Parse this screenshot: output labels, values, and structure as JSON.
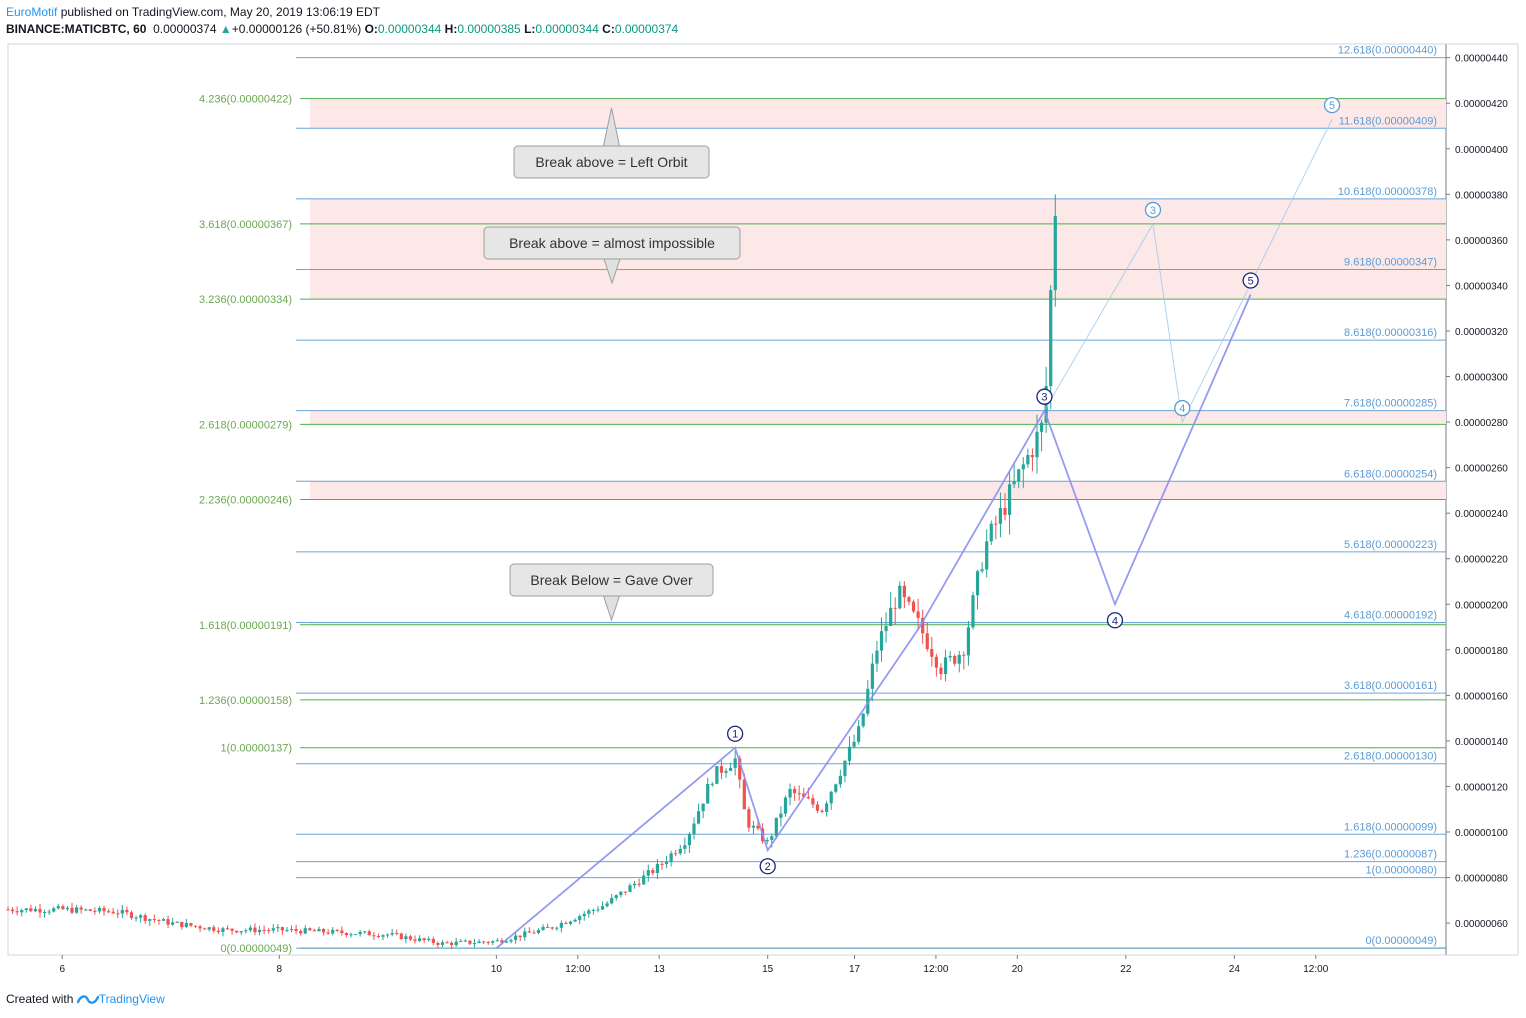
{
  "header": {
    "author": "EuroMotif",
    "published_text": "published on TradingView.com, May 20, 2019 13:06:19 EDT",
    "symbol": "BINANCE:MATICBTC, 60",
    "last": "0.00000374",
    "change_arrow": "▲",
    "change": "+0.00000126 (+50.81%)",
    "o_label": "O:",
    "o_value": "0.00000344",
    "h_label": "H:",
    "h_value": "0.00000385",
    "l_label": "L:",
    "l_value": "0.00000344",
    "c_label": "C:",
    "c_value": "0.00000374"
  },
  "footer": {
    "created_with": "Created with",
    "brand": "TradingView",
    "logo_icon": "tradingview-logo-icon"
  },
  "annotations": {
    "callout_left_orbit": "Break above = Left Orbit",
    "callout_impossible": "Break above = almost impossible",
    "callout_game_over": "Break Below = Gave Over"
  },
  "colors": {
    "up_candle": "#26a69a",
    "down_candle": "#ef5350",
    "fib_green": "#4caf50",
    "fib_blue": "#2196f3",
    "wave_purple": "#8c8ff0",
    "wave_label": "#1a237e",
    "zone_pink": "#fde8e8"
  },
  "chart_data": {
    "type": "candlestick",
    "y_axis": {
      "min": 4.6e-07,
      "max": 4.46e-06,
      "ticks": [
        "0.00000440",
        "0.00000420",
        "0.00000400",
        "0.00000380",
        "0.00000360",
        "0.00000340",
        "0.00000320",
        "0.00000300",
        "0.00000280",
        "0.00000260",
        "0.00000240",
        "0.00000220",
        "0.00000200",
        "0.00000180",
        "0.00000160",
        "0.00000140",
        "0.00000120",
        "0.00000100",
        "0.00000080",
        "0.00000060"
      ],
      "tick_values": [
        4.4e-06,
        4.2e-06,
        4e-06,
        3.8e-06,
        3.6e-06,
        3.4e-06,
        3.2e-06,
        3e-06,
        2.8e-06,
        2.6e-06,
        2.4e-06,
        2.2e-06,
        2e-06,
        1.8e-06,
        1.6e-06,
        1.4e-06,
        1.2e-06,
        1e-06,
        8e-07,
        6e-07
      ]
    },
    "x_axis": {
      "ticks": [
        {
          "label": "6",
          "t": 0.5
        },
        {
          "label": "8",
          "t": 2.5
        },
        {
          "label": "10",
          "t": 4.5
        },
        {
          "label": "12:00",
          "t": 5.25
        },
        {
          "label": "13",
          "t": 6.0
        },
        {
          "label": "15",
          "t": 7.0
        },
        {
          "label": "17",
          "t": 7.8
        },
        {
          "label": "12:00",
          "t": 8.55
        },
        {
          "label": "20",
          "t": 9.3
        },
        {
          "label": "22",
          "t": 10.3
        },
        {
          "label": "24",
          "t": 11.3
        },
        {
          "label": "12:00",
          "t": 12.05
        }
      ]
    },
    "fib_left_green": [
      {
        "label": "4.236(0.00000422)",
        "value": 4.22e-06
      },
      {
        "label": "3.618(0.00000367)",
        "value": 3.67e-06
      },
      {
        "label": "3.236(0.00000334)",
        "value": 3.34e-06
      },
      {
        "label": "2.618(0.00000279)",
        "value": 2.79e-06
      },
      {
        "label": "2.236(0.00000246)",
        "value": 2.46e-06
      },
      {
        "label": "1.618(0.00000191)",
        "value": 1.91e-06
      },
      {
        "label": "1.236(0.00000158)",
        "value": 1.58e-06
      },
      {
        "label": "1(0.00000137)",
        "value": 1.37e-06
      },
      {
        "label": "0(0.00000049)",
        "value": 4.9e-07
      }
    ],
    "fib_right_blue": [
      {
        "label": "12.618(0.00000440)",
        "value": 4.4e-06
      },
      {
        "label": "11.618(0.00000409)",
        "value": 4.09e-06
      },
      {
        "label": "10.618(0.00000378)",
        "value": 3.78e-06
      },
      {
        "label": "9.618(0.00000347)",
        "value": 3.47e-06
      },
      {
        "label": "8.618(0.00000316)",
        "value": 3.16e-06
      },
      {
        "label": "7.618(0.00000285)",
        "value": 2.85e-06
      },
      {
        "label": "6.618(0.00000254)",
        "value": 2.54e-06
      },
      {
        "label": "5.618(0.00000223)",
        "value": 2.23e-06
      },
      {
        "label": "4.618(0.00000192)",
        "value": 1.92e-06
      },
      {
        "label": "3.618(0.00000161)",
        "value": 1.61e-06
      },
      {
        "label": "2.618(0.00000130)",
        "value": 1.3e-06
      },
      {
        "label": "1.618(0.00000099)",
        "value": 9.9e-07
      },
      {
        "label": "1.236(0.00000087)",
        "value": 8.7e-07
      },
      {
        "label": "1(0.00000080)",
        "value": 8e-07
      },
      {
        "label": "0(0.00000049)",
        "value": 4.9e-07
      }
    ],
    "zones": [
      {
        "from": 4.09e-06,
        "to": 4.22e-06
      },
      {
        "from": 3.34e-06,
        "to": 3.78e-06
      },
      {
        "from": 2.79e-06,
        "to": 2.85e-06
      },
      {
        "from": 2.46e-06,
        "to": 2.54e-06
      },
      {
        "from": 1.91e-06,
        "to": 1.92e-06
      }
    ],
    "waves_main": [
      {
        "label": "",
        "t": 4.5,
        "v": 4.9e-07
      },
      {
        "label": "1",
        "t": 6.7,
        "v": 1.37e-06
      },
      {
        "label": "2",
        "t": 7.0,
        "v": 9.2e-07
      },
      {
        "label": "",
        "t": 8.4,
        "v": 1.9e-06
      },
      {
        "label": "3",
        "t": 9.55,
        "v": 2.85e-06
      },
      {
        "label": "4",
        "t": 10.2,
        "v": 2e-06
      },
      {
        "label": "5",
        "t": 11.45,
        "v": 3.36e-06
      }
    ],
    "waves_alt": [
      {
        "label": "",
        "t": 9.55,
        "v": 2.85e-06
      },
      {
        "label": "3",
        "t": 10.55,
        "v": 3.67e-06
      },
      {
        "label": "4",
        "t": 10.82,
        "v": 2.8e-06
      },
      {
        "label": "5",
        "t": 12.2,
        "v": 4.13e-06
      }
    ],
    "ohlc_anchors": [
      [
        0.0,
        6.6e-07
      ],
      [
        0.5,
        6.6e-07
      ],
      [
        1.0,
        6.5e-07
      ],
      [
        1.5,
        6e-07
      ],
      [
        2.0,
        5.7e-07
      ],
      [
        2.5,
        5.7e-07
      ],
      [
        3.0,
        5.6e-07
      ],
      [
        3.5,
        5.5e-07
      ],
      [
        4.0,
        5.1e-07
      ],
      [
        4.5,
        5.2e-07
      ],
      [
        5.0,
        5.8e-07
      ],
      [
        5.5,
        6.8e-07
      ],
      [
        6.0,
        8.5e-07
      ],
      [
        6.25,
        9.7e-07
      ],
      [
        6.5,
        1.25e-06
      ],
      [
        6.7,
        1.32e-06
      ],
      [
        6.8,
        1.05e-06
      ],
      [
        7.0,
        9.5e-07
      ],
      [
        7.2,
        1.18e-06
      ],
      [
        7.5,
        1.1e-06
      ],
      [
        7.7,
        1.3e-06
      ],
      [
        7.85,
        1.45e-06
      ],
      [
        8.0,
        1.8e-06
      ],
      [
        8.2,
        2.05e-06
      ],
      [
        8.4,
        1.9e-06
      ],
      [
        8.6,
        1.72e-06
      ],
      [
        8.8,
        1.8e-06
      ],
      [
        9.0,
        2.25e-06
      ],
      [
        9.2,
        2.45e-06
      ],
      [
        9.4,
        2.65e-06
      ],
      [
        9.55,
        2.8e-06
      ],
      [
        9.6,
        3.3e-06
      ],
      [
        9.65,
        3.74e-06
      ]
    ]
  }
}
